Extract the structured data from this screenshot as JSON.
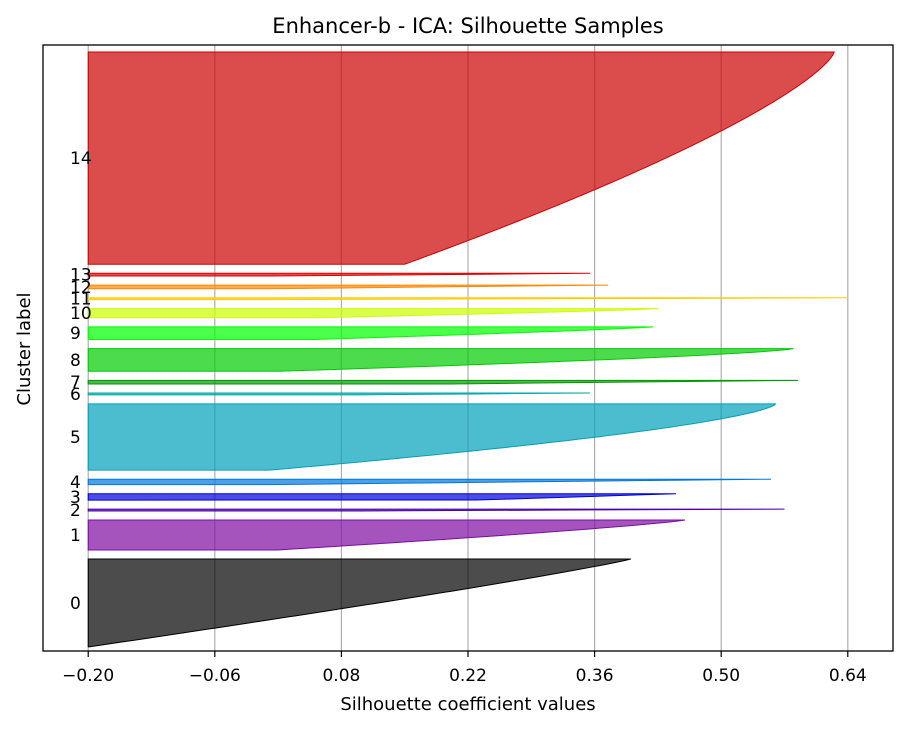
{
  "chart_data": {
    "type": "area",
    "title": "Enhancer-b - ICA: Silhouette Samples",
    "xlabel": "Silhouette coefficient values",
    "ylabel": "Cluster label",
    "xlim": [
      -0.25,
      0.69
    ],
    "x_ticks": [
      "-0.20",
      "-0.06",
      "0.08",
      "0.22",
      "0.36",
      "0.50",
      "0.64"
    ],
    "x_tick_values": [
      -0.2,
      -0.06,
      0.08,
      0.22,
      0.36,
      0.5,
      0.64
    ],
    "grid": "x",
    "baseline": -0.2,
    "clusters": [
      {
        "label": "0",
        "color": "#000000",
        "samples": 97,
        "max": 0.4,
        "min": -0.2,
        "shape": 1.1
      },
      {
        "label": "1",
        "color": "#7e0ca0",
        "samples": 33,
        "max": 0.46,
        "min": 0.01,
        "shape": 1.2
      },
      {
        "label": "2",
        "color": "#4b00a8",
        "samples": 2,
        "max": 0.57,
        "min": 0.1,
        "shape": 1.0
      },
      {
        "label": "3",
        "color": "#0000dd",
        "samples": 7,
        "max": 0.45,
        "min": 0.23,
        "shape": 1.0
      },
      {
        "label": "4",
        "color": "#0077dd",
        "samples": 6,
        "max": 0.555,
        "min": 0.0,
        "shape": 1.0
      },
      {
        "label": "5",
        "color": "#00a0bb",
        "samples": 73,
        "max": 0.56,
        "min": 0.0,
        "shape": 1.5
      },
      {
        "label": "6",
        "color": "#00aaaa",
        "samples": 2,
        "max": 0.355,
        "min": 0.1,
        "shape": 1.0
      },
      {
        "label": "7",
        "color": "#009900",
        "samples": 4,
        "max": 0.585,
        "min": 0.2,
        "shape": 1.0
      },
      {
        "label": "8",
        "color": "#00cc00",
        "samples": 25,
        "max": 0.58,
        "min": 0.01,
        "shape": 1.4
      },
      {
        "label": "9",
        "color": "#00ff00",
        "samples": 14,
        "max": 0.425,
        "min": 0.05,
        "shape": 1.2
      },
      {
        "label": "10",
        "color": "#ccff00",
        "samples": 10,
        "max": 0.43,
        "min": 0.05,
        "shape": 1.2
      },
      {
        "label": "11",
        "color": "#ffcc00",
        "samples": 2,
        "max": 0.64,
        "min": 0.0,
        "shape": 1.0
      },
      {
        "label": "12",
        "color": "#ff8800",
        "samples": 4,
        "max": 0.375,
        "min": 0.0,
        "shape": 1.0
      },
      {
        "label": "13",
        "color": "#dd0000",
        "samples": 3,
        "max": 0.355,
        "min": 0.0,
        "shape": 1.0
      },
      {
        "label": "14",
        "color": "#cc0000",
        "samples": 234,
        "max": 0.625,
        "min": 0.15,
        "shape": 1.35
      }
    ]
  }
}
